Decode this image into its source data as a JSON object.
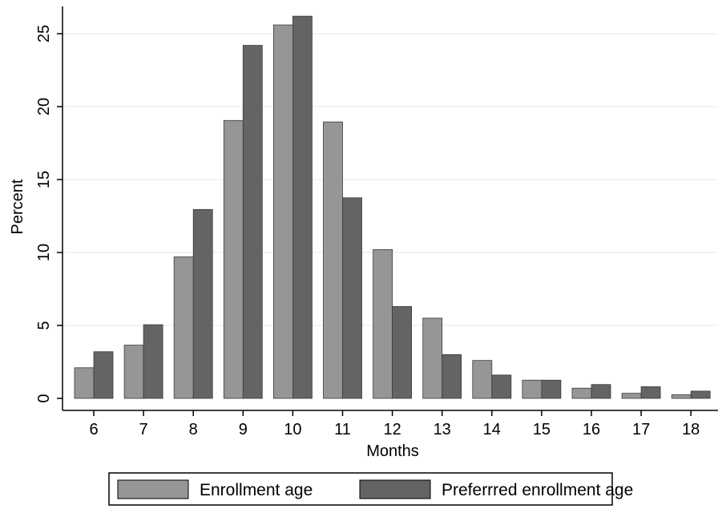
{
  "chart_data": {
    "type": "bar",
    "xlabel": "Months",
    "ylabel": "Percent",
    "categories": [
      "6",
      "7",
      "8",
      "9",
      "10",
      "11",
      "12",
      "13",
      "14",
      "15",
      "16",
      "17",
      "18"
    ],
    "series": [
      {
        "name": "Enrollment age",
        "color": "#969696",
        "values": [
          2.1,
          3.65,
          9.7,
          19.05,
          25.6,
          18.95,
          10.2,
          5.5,
          2.6,
          1.25,
          0.7,
          0.35,
          0.25
        ]
      },
      {
        "name": "Preferrred enrollment age",
        "color": "#646464",
        "values": [
          3.2,
          5.05,
          12.95,
          24.2,
          26.2,
          13.75,
          6.3,
          3.0,
          1.6,
          1.25,
          0.95,
          0.8,
          0.5
        ]
      }
    ],
    "ylim": [
      0,
      26.2
    ],
    "yticks": [
      0,
      5,
      10,
      15,
      20,
      25
    ],
    "grid": true,
    "legend": "bottom"
  }
}
